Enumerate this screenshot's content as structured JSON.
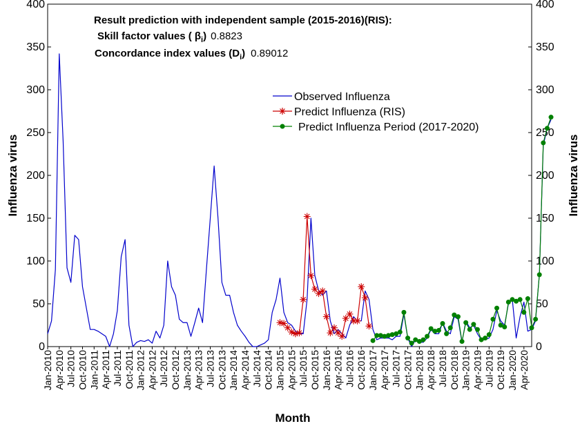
{
  "chart_data": {
    "type": "line",
    "xlabel": "Month",
    "ylabel_left": "Influenza virus",
    "ylabel_right": "Influenza virus",
    "ylim": [
      0,
      400
    ],
    "yticks": [
      0,
      50,
      100,
      150,
      200,
      250,
      300,
      350,
      400
    ],
    "x_tick_labels": [
      "Jan-2010",
      "Apr-2010",
      "Jul-2010",
      "Oct-2010",
      "Jan-2011",
      "Apr-2011",
      "Jul-2011",
      "Oct-2011",
      "Jan-2012",
      "Apr-2012",
      "Jul-2012",
      "Oct-2012",
      "Jan-2013",
      "Apr-2013",
      "Jul-2013",
      "Oct-2013",
      "Jan-2014",
      "Apr-2014",
      "Jul-2014",
      "Oct-2014",
      "Jan-2015",
      "Apr-2015",
      "Jul-2015",
      "Oct-2015",
      "Jan-2016",
      "Apr-2016",
      "Jul-2016",
      "Oct-2016",
      "Jan-2017",
      "Apr-2017",
      "Jul-2017",
      "Oct-2017",
      "Jan-2018",
      "Apr-2018",
      "Jul-2018",
      "Oct-2018",
      "Jan-2019",
      "Apr-2019",
      "Jul-2019",
      "Oct-2019",
      "Jan-2020",
      "Apr-2020"
    ],
    "annotations": {
      "line1": "Result prediction with independent sample (2015-2016)(RIS):",
      "line2_label": "Skill factor values ( β",
      "line2_sub": "i",
      "line2_close": ")",
      "line2_value": "0.8823",
      "line3_label": "Concordance index values (D",
      "line3_sub": "i",
      "line3_close": ")",
      "line3_value": "0.89012"
    },
    "legend": [
      {
        "label": "Observed Influenza",
        "color": "#0000cc",
        "marker": "none"
      },
      {
        "label": "Predict Influenza (RIS)",
        "color": "#cc0000",
        "marker": "asterisk"
      },
      {
        "label": "Predict Influenza Period (2017-2020)",
        "color": "#008000",
        "marker": "circle"
      }
    ],
    "series": [
      {
        "name": "Observed Influenza",
        "color": "#0000cc",
        "x_start": "Jan-2010",
        "values": [
          15,
          30,
          90,
          342,
          240,
          92,
          75,
          130,
          125,
          70,
          45,
          20,
          20,
          18,
          15,
          12,
          0,
          15,
          42,
          105,
          125,
          25,
          0,
          5,
          7,
          6,
          8,
          4,
          18,
          10,
          25,
          100,
          70,
          60,
          32,
          28,
          28,
          12,
          28,
          45,
          28,
          90,
          150,
          211,
          150,
          75,
          60,
          60,
          40,
          25,
          18,
          12,
          5,
          0,
          0,
          2,
          4,
          8,
          40,
          55,
          80,
          40,
          28,
          25,
          18,
          15,
          15,
          55,
          150,
          83,
          65,
          60,
          65,
          30,
          15,
          20,
          15,
          10,
          25,
          35,
          30,
          30,
          65,
          55,
          20,
          8,
          10,
          10,
          10,
          8,
          12,
          12,
          38,
          10,
          0,
          8,
          5,
          5,
          10,
          20,
          15,
          15,
          28,
          18,
          15,
          35,
          32,
          5,
          30,
          22,
          25,
          15,
          8,
          8,
          10,
          20,
          42,
          30,
          25,
          50,
          55,
          10,
          35,
          52,
          18,
          20,
          30,
          85,
          235,
          255,
          265
        ]
      },
      {
        "name": "Predict Influenza (RIS)",
        "color": "#cc0000",
        "x_start": "Jan-2015",
        "values": [
          28,
          27,
          22,
          17,
          15,
          16,
          55,
          152,
          83,
          67,
          62,
          65,
          35,
          16,
          22,
          16,
          12,
          33,
          38,
          30,
          30,
          70,
          57,
          24
        ]
      },
      {
        "name": "Predict Influenza Period (2017-2020)",
        "color": "#008000",
        "x_start": "Jan-2017",
        "values": [
          7,
          13,
          13,
          12,
          13,
          14,
          15,
          17,
          40,
          10,
          4,
          8,
          6,
          8,
          12,
          21,
          18,
          19,
          27,
          15,
          22,
          37,
          35,
          6,
          28,
          20,
          26,
          20,
          8,
          10,
          14,
          32,
          45,
          25,
          23,
          52,
          55,
          53,
          55,
          40,
          56,
          22,
          32,
          84,
          238,
          255,
          268
        ]
      }
    ]
  }
}
